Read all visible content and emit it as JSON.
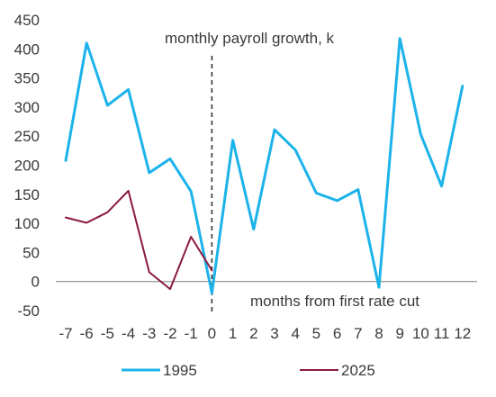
{
  "chart_data": {
    "type": "line",
    "title": "",
    "xlabel": "",
    "ylabel": "",
    "x": [
      -7,
      -6,
      -5,
      -4,
      -3,
      -2,
      -1,
      0,
      1,
      2,
      3,
      4,
      5,
      6,
      7,
      8,
      9,
      10,
      11,
      12
    ],
    "x_tick_labels": [
      "-7",
      "-6",
      "-5",
      "-4",
      "-3",
      "-2",
      "-1",
      "0",
      "1",
      "2",
      "3",
      "4",
      "5",
      "6",
      "7",
      "8",
      "9",
      "10",
      "11",
      "12"
    ],
    "ylim": [
      -50,
      450
    ],
    "y_ticks": [
      -50,
      0,
      50,
      100,
      150,
      200,
      250,
      300,
      350,
      400,
      450
    ],
    "series": [
      {
        "name": "1995",
        "color": "#1cb3ea",
        "x": [
          -7,
          -6,
          -5,
          -4,
          -3,
          -2,
          -1,
          0,
          1,
          2,
          3,
          4,
          5,
          6,
          7,
          8,
          9,
          10,
          11,
          12
        ],
        "values": [
          208,
          410,
          303,
          330,
          187,
          211,
          155,
          -20,
          243,
          90,
          261,
          226,
          152,
          139,
          158,
          -10,
          418,
          253,
          164,
          336
        ]
      },
      {
        "name": "2025",
        "color": "#8b1a3c",
        "x": [
          -7,
          -6,
          -5,
          -4,
          -3,
          -2,
          -1,
          0
        ],
        "values": [
          110,
          101,
          119,
          156,
          16,
          -13,
          77,
          19
        ]
      }
    ],
    "annotations": [
      {
        "text": "monthly payroll growth, k"
      },
      {
        "text": "months from first rate cut"
      }
    ],
    "reference_line": {
      "x": 0,
      "style": "dashed",
      "color": "#333333"
    },
    "zero_line_color": "#7f7f7f",
    "grid": false,
    "legend_position": "bottom"
  }
}
